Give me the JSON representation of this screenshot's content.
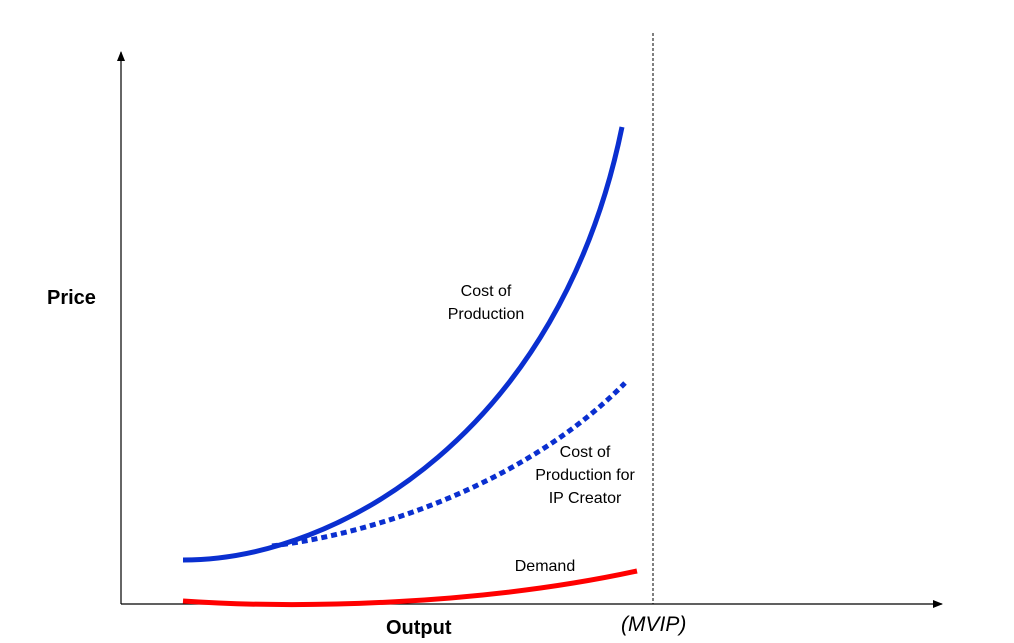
{
  "axes": {
    "y_label": "Price",
    "x_label": "Output",
    "x_marker": "(MVIP)"
  },
  "curves": {
    "cost_of_production": {
      "label_line1": "Cost of",
      "label_line2": "Production",
      "color": "#0a2fd0",
      "style": "solid"
    },
    "cost_ip_creator": {
      "label_line1": "Cost of",
      "label_line2": "Production for",
      "label_line3": "IP Creator",
      "color": "#0a2fd0",
      "style": "dotted"
    },
    "demand": {
      "label": "Demand",
      "color": "#ff0000",
      "style": "solid"
    }
  },
  "colors": {
    "axis": "#000000",
    "marker_line": "#000000"
  }
}
